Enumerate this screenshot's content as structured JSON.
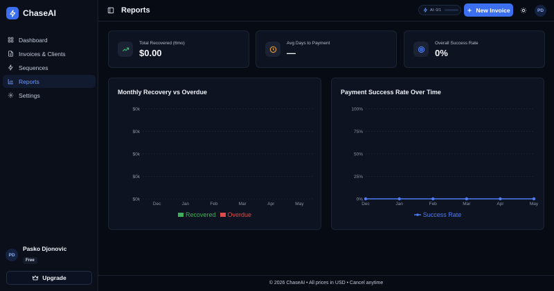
{
  "app": {
    "name": "ChaseAI"
  },
  "sidebar": {
    "items": [
      {
        "label": "Dashboard",
        "icon": "grid-icon",
        "active": false
      },
      {
        "label": "Invoices & Clients",
        "icon": "file-icon",
        "active": false
      },
      {
        "label": "Sequences",
        "icon": "zap-icon",
        "active": false
      },
      {
        "label": "Reports",
        "icon": "bar-chart-icon",
        "active": true
      },
      {
        "label": "Settings",
        "icon": "gear-icon",
        "active": false
      }
    ],
    "user": {
      "initials": "PD",
      "name": "Pasko Djonovic",
      "plan": "Free"
    },
    "upgrade_label": "Upgrade"
  },
  "header": {
    "title": "Reports",
    "ai_usage": "AI: 0/1",
    "new_invoice_label": "New Invoice",
    "avatar_initials": "PD"
  },
  "stats": [
    {
      "label": "Total Recovered (6mo)",
      "value": "$0.00",
      "icon": "trending-up-icon",
      "icon_color": "#34c46b"
    },
    {
      "label": "Avg Days to Payment",
      "value": "—",
      "icon": "clock-icon",
      "icon_color": "#f0a030"
    },
    {
      "label": "Overall Success Rate",
      "value": "0%",
      "icon": "target-icon",
      "icon_color": "#4f7df5"
    }
  ],
  "charts": [
    {
      "title": "Monthly Recovery vs Overdue",
      "legend": [
        {
          "label": "Recovered",
          "color": "#3fae5a"
        },
        {
          "label": "Overdue",
          "color": "#e04b4b"
        }
      ]
    },
    {
      "title": "Payment Success Rate Over Time",
      "legend": [
        {
          "label": "Success Rate",
          "color": "#4f7df5"
        }
      ]
    }
  ],
  "chart_data": [
    {
      "type": "bar",
      "title": "Monthly Recovery vs Overdue",
      "categories": [
        "Dec",
        "Jan",
        "Feb",
        "Mar",
        "Apr",
        "May"
      ],
      "y_tick_labels": [
        "$0k",
        "$0k",
        "$0k",
        "$0k",
        "$0k"
      ],
      "series": [
        {
          "name": "Recovered",
          "values": [
            0,
            0,
            0,
            0,
            0,
            0
          ]
        },
        {
          "name": "Overdue",
          "values": [
            0,
            0,
            0,
            0,
            0,
            0
          ]
        }
      ],
      "grid": true,
      "legend_position": "bottom"
    },
    {
      "type": "line",
      "title": "Payment Success Rate Over Time",
      "categories": [
        "Dec",
        "Jan",
        "Feb",
        "Mar",
        "Apr",
        "May"
      ],
      "y_tick_labels": [
        "100%",
        "75%",
        "50%",
        "25%",
        "0%"
      ],
      "ylim": [
        0,
        100
      ],
      "series": [
        {
          "name": "Success Rate",
          "values": [
            0,
            0,
            0,
            0,
            0,
            0
          ]
        }
      ],
      "grid": true,
      "legend_position": "bottom"
    }
  ],
  "footer": {
    "text": "© 2026 ChaseAI • All prices in USD • Cancel anytime"
  },
  "colors": {
    "accent": "#3b6ff0",
    "background": "#070b14",
    "card": "#0d1320"
  }
}
